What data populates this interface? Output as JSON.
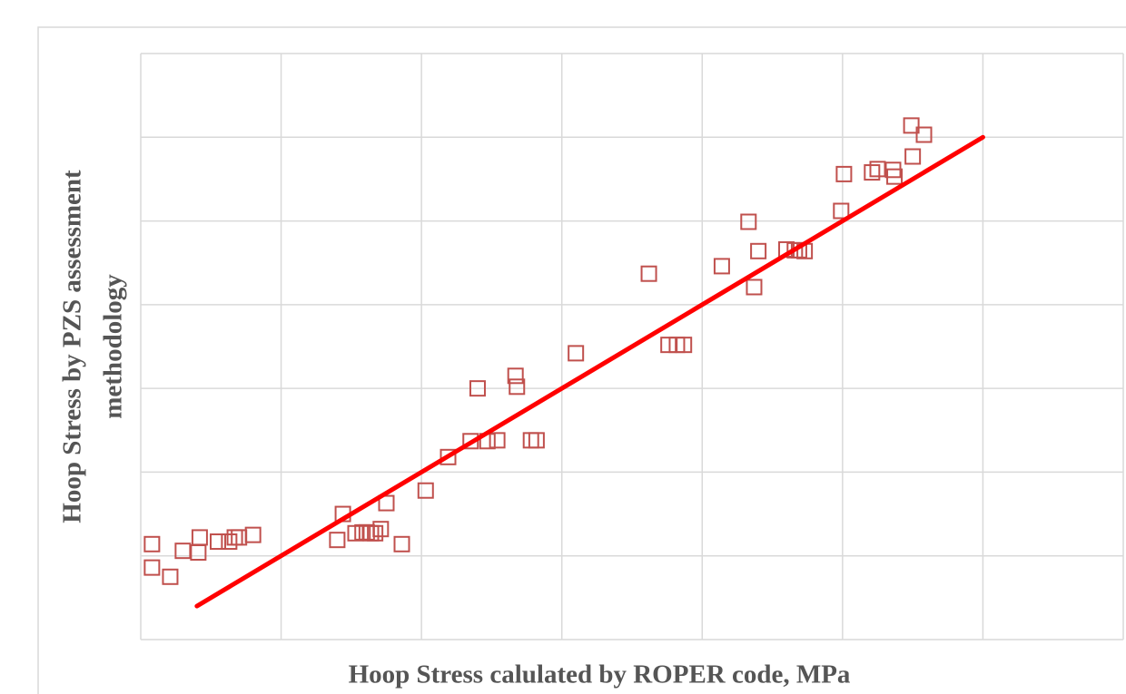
{
  "chart_data": {
    "type": "scatter",
    "xlabel": "Hoop Stress calulated by ROPER code, MPa",
    "ylabel": [
      "Hoop Stress by PZS assessment",
      "methodology"
    ],
    "xlim": [
      0,
      7
    ],
    "ylim": [
      0,
      7
    ],
    "xticks": [
      0,
      1,
      2,
      3,
      4,
      5,
      6,
      7
    ],
    "yticks": [
      0,
      1,
      2,
      3,
      4,
      5,
      6,
      7
    ],
    "grid": true,
    "series": [
      {
        "kind": "markers",
        "color": "#c0504d",
        "x": [
          0.08,
          0.08,
          0.21,
          0.3,
          0.41,
          0.42,
          0.55,
          0.63,
          0.67,
          0.7,
          0.8,
          1.4,
          1.44,
          1.53,
          1.58,
          1.61,
          1.64,
          1.67,
          1.71,
          1.75,
          1.86,
          2.03,
          2.19,
          2.35,
          2.4,
          2.47,
          2.54,
          2.67,
          2.68,
          2.78,
          2.82,
          3.1,
          3.62,
          3.76,
          3.82,
          3.87,
          4.14,
          4.33,
          4.37,
          4.4,
          4.6,
          4.66,
          4.69,
          4.73,
          4.99,
          5.01,
          5.21,
          5.25,
          5.36,
          5.37,
          5.5,
          5.49,
          5.58
        ],
        "values": [
          1.14,
          0.86,
          0.75,
          1.06,
          1.04,
          1.22,
          1.17,
          1.17,
          1.22,
          1.22,
          1.25,
          1.19,
          1.5,
          1.27,
          1.28,
          1.28,
          1.27,
          1.27,
          1.32,
          1.63,
          1.14,
          1.78,
          2.18,
          2.37,
          3.0,
          2.37,
          2.38,
          3.15,
          3.02,
          2.38,
          2.38,
          3.42,
          4.37,
          3.52,
          3.52,
          3.52,
          4.46,
          4.99,
          4.21,
          4.64,
          4.66,
          4.65,
          4.65,
          4.64,
          5.12,
          5.56,
          5.58,
          5.62,
          5.61,
          5.53,
          5.77,
          6.14,
          6.03
        ]
      },
      {
        "kind": "line",
        "color": "#ff0000",
        "x": [
          0.4,
          6
        ],
        "values": [
          0.4,
          6
        ]
      }
    ]
  }
}
